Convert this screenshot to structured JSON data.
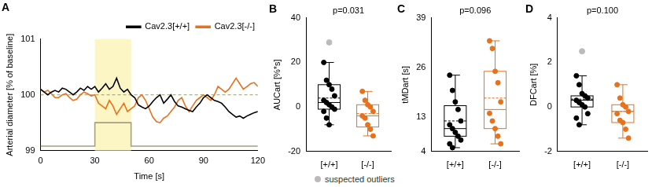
{
  "chart_data": [
    {
      "type": "line",
      "title": "A",
      "x_label": "Time [s]",
      "y_label": "Arterial diameter [% of baseline]",
      "xlim": [
        0,
        120
      ],
      "xticks": [
        0,
        30,
        60,
        90,
        120
      ],
      "ylim": [
        99,
        101
      ],
      "yticks": [
        99,
        100,
        101
      ],
      "grid": false,
      "legend": "top right",
      "baseline": {
        "value": 100,
        "color": "#9aa070"
      },
      "stimulus": {
        "x": [
          30,
          50
        ],
        "color": "#fbf6c4"
      },
      "stimulus_trace": {
        "x": [
          0,
          30,
          30,
          50,
          50,
          120
        ],
        "values": [
          99.08,
          99.08,
          99.5,
          99.5,
          99.08,
          99.08
        ],
        "color": "#a89f80"
      },
      "x": [
        0,
        2,
        4,
        6,
        8,
        10,
        12,
        14,
        16,
        18,
        20,
        22,
        24,
        26,
        28,
        30,
        32,
        34,
        36,
        38,
        40,
        42,
        44,
        46,
        48,
        50,
        52,
        54,
        56,
        58,
        60,
        62,
        64,
        66,
        68,
        70,
        72,
        74,
        76,
        78,
        80,
        82,
        84,
        86,
        88,
        90,
        92,
        94,
        96,
        98,
        100,
        102,
        104,
        106,
        108,
        110,
        112,
        114,
        116,
        118,
        120
      ],
      "series": [
        {
          "name": "Cav2.3[+/+]",
          "color": "#000000",
          "values": [
            100.1,
            100.05,
            100.0,
            100.05,
            100.08,
            100.05,
            100.12,
            100.1,
            100.05,
            100.0,
            100.05,
            100.12,
            100.08,
            100.15,
            100.1,
            100.15,
            100.05,
            100.12,
            100.2,
            100.1,
            100.15,
            100.3,
            100.12,
            100.05,
            100.1,
            100.0,
            99.95,
            99.82,
            99.78,
            99.75,
            99.8,
            99.88,
            99.95,
            100.0,
            99.85,
            99.92,
            100.0,
            99.88,
            99.8,
            99.78,
            99.75,
            99.72,
            99.7,
            99.78,
            99.85,
            99.95,
            100.0,
            99.95,
            99.9,
            99.88,
            99.85,
            99.78,
            99.7,
            99.65,
            99.6,
            99.62,
            99.58,
            99.62,
            99.65,
            99.68,
            99.7
          ]
        },
        {
          "name": "Cav2.3[-/-]",
          "color": "#e8711c",
          "values": [
            100.1,
            100.05,
            100.08,
            100.02,
            99.95,
            99.95,
            100.0,
            100.02,
            99.95,
            99.9,
            99.92,
            100.0,
            100.05,
            100.02,
            99.98,
            100.0,
            99.85,
            99.8,
            99.75,
            99.9,
            99.8,
            99.65,
            99.75,
            99.85,
            99.7,
            99.75,
            99.8,
            99.95,
            100.0,
            99.9,
            99.75,
            99.6,
            99.52,
            99.5,
            99.58,
            99.62,
            99.7,
            99.78,
            99.9,
            99.95,
            99.8,
            99.7,
            99.8,
            99.9,
            99.95,
            100.0,
            99.95,
            99.9,
            100.0,
            100.15,
            100.1,
            100.05,
            100.1,
            100.2,
            100.3,
            100.2,
            100.1,
            100.15,
            100.2,
            100.22,
            100.15
          ]
        }
      ]
    },
    {
      "type": "box",
      "title": "B",
      "y_label": "AUCart [%*s]",
      "annotation": "p=0.031",
      "categories": [
        "[+/+]",
        "[-/-]"
      ],
      "ylim": [
        -20,
        40
      ],
      "yticks": [
        -20,
        0,
        20,
        40
      ],
      "grid": false,
      "series": [
        {
          "color": "#000000",
          "whisker": [
            -8,
            20
          ],
          "box": [
            -1,
            10
          ],
          "median": 2,
          "mean": 4,
          "points": [
            20,
            12,
            10,
            8,
            5,
            3,
            2,
            1,
            0,
            -1,
            -2,
            -5,
            -8
          ],
          "outliers": [
            29
          ]
        },
        {
          "color": "#e8711c",
          "whisker": [
            -13,
            7
          ],
          "box": [
            -9,
            1
          ],
          "median": -4,
          "mean": -3,
          "points": [
            7,
            3,
            1,
            0,
            -2,
            -4,
            -5,
            -8,
            -10,
            -13
          ],
          "outliers": []
        }
      ]
    },
    {
      "type": "box",
      "title": "C",
      "y_label": "tMDart [s]",
      "annotation": "p=0.096",
      "categories": [
        "[+/+]",
        "[-/-]"
      ],
      "ylim": [
        4,
        39
      ],
      "yticks": [
        4,
        13,
        26,
        39
      ],
      "grid": false,
      "series": [
        {
          "color": "#000000",
          "whisker": [
            5,
            24
          ],
          "box": [
            8,
            16
          ],
          "median": 10,
          "mean": 12,
          "points": [
            24,
            20,
            17,
            15,
            12,
            11,
            10,
            9,
            8,
            7,
            6,
            5
          ],
          "outliers": []
        },
        {
          "color": "#e8711c",
          "whisker": [
            6,
            33
          ],
          "box": [
            10,
            25
          ],
          "median": 15,
          "mean": 18,
          "points": [
            33,
            31,
            25,
            22,
            17,
            14,
            12,
            10,
            8,
            6
          ],
          "outliers": []
        }
      ]
    },
    {
      "type": "box",
      "title": "D",
      "y_label": "DFCart [%]",
      "annotation": "p=0.100",
      "categories": [
        "[+/+]",
        "[-/-]"
      ],
      "ylim": [
        -2,
        4
      ],
      "yticks": [
        -2,
        0,
        2,
        4
      ],
      "grid": false,
      "series": [
        {
          "color": "#000000",
          "whisker": [
            -0.8,
            1.4
          ],
          "box": [
            0,
            0.5
          ],
          "median": 0.3,
          "mean": 0.35,
          "points": [
            1.4,
            1.0,
            0.6,
            0.5,
            0.4,
            0.3,
            0.2,
            0.1,
            0.0,
            -0.3,
            -0.5,
            -0.8
          ],
          "outliers": [
            2.5
          ]
        },
        {
          "color": "#e8711c",
          "whisker": [
            -1.4,
            1.0
          ],
          "box": [
            -0.7,
            0.1
          ],
          "median": -0.2,
          "mean": -0.2,
          "points": [
            1.0,
            0.4,
            0.1,
            0.0,
            -0.2,
            -0.3,
            -0.6,
            -0.7,
            -1.0,
            -1.4
          ],
          "outliers": []
        }
      ]
    }
  ],
  "outlier_legend": {
    "label": "suspected outliers",
    "color": "#bbbbbb"
  }
}
